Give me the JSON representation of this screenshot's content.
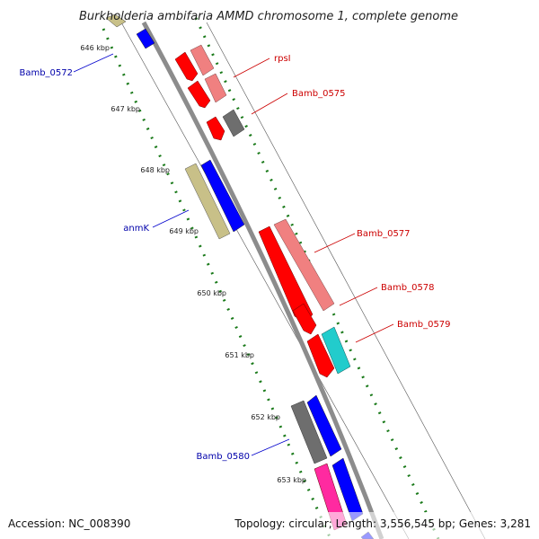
{
  "title": "Burkholderia ambifaria AMMD chromosome 1, complete genome",
  "footer": {
    "accession": "Accession: NC_008390",
    "summary": "Topology: circular; Length: 3,556,545 bp; Genes: 3,281"
  },
  "ticks": [
    "646 kbp",
    "647 kbp",
    "648 kbp",
    "649 kbp",
    "650 kbp",
    "651 kbp",
    "652 kbp",
    "653 kbp"
  ],
  "gene_labels": [
    {
      "text": "Bamb_0572",
      "color": "#0000aa"
    },
    {
      "text": "rpsI",
      "color": "#cc0000"
    },
    {
      "text": "Bamb_0575",
      "color": "#cc0000"
    },
    {
      "text": "anmK",
      "color": "#0000aa"
    },
    {
      "text": "Bamb_0577",
      "color": "#cc0000"
    },
    {
      "text": "Bamb_0578",
      "color": "#cc0000"
    },
    {
      "text": "Bamb_0579",
      "color": "#cc0000"
    },
    {
      "text": "Bamb_0580",
      "color": "#0000aa"
    }
  ],
  "colors": {
    "backbone": "#8c8c8c",
    "gc_ticks": "#1a7a1a",
    "cds_red": "#ff0000",
    "cds_salmon": "#f08080",
    "cds_grey": "#6e6e6e",
    "cds_olive": "#c8c088",
    "cds_blue": "#0000ff",
    "cds_cyan": "#22cccc",
    "cds_pink": "#ff2aa0"
  }
}
